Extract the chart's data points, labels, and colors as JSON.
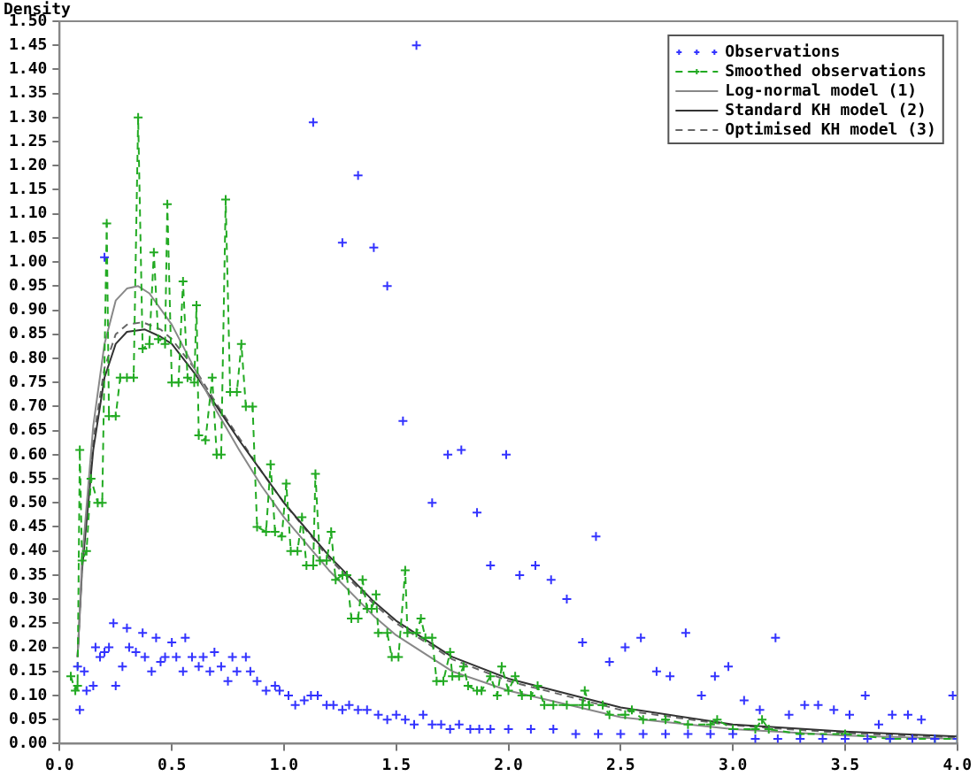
{
  "chart_data": {
    "type": "line",
    "ylabel": "Density",
    "xlim": [
      0,
      4
    ],
    "ylim": [
      0,
      1.5
    ],
    "xticks": [
      {
        "value": 0,
        "label": "0.0"
      },
      {
        "value": 0.5,
        "label": "0.5"
      },
      {
        "value": 1,
        "label": "1.0"
      },
      {
        "value": 1.5,
        "label": "1.5"
      },
      {
        "value": 2,
        "label": "2.0"
      },
      {
        "value": 2.5,
        "label": "2.5"
      },
      {
        "value": 3,
        "label": "3.0"
      },
      {
        "value": 3.5,
        "label": "3.5"
      },
      {
        "value": 4,
        "label": "4.0"
      }
    ],
    "yticks": [
      {
        "value": 0,
        "label": "0.00"
      },
      {
        "value": 0.05,
        "label": "0.05"
      },
      {
        "value": 0.1,
        "label": "0.10"
      },
      {
        "value": 0.15,
        "label": "0.15"
      },
      {
        "value": 0.2,
        "label": "0.20"
      },
      {
        "value": 0.25,
        "label": "0.25"
      },
      {
        "value": 0.3,
        "label": "0.30"
      },
      {
        "value": 0.35,
        "label": "0.35"
      },
      {
        "value": 0.4,
        "label": "0.40"
      },
      {
        "value": 0.45,
        "label": "0.45"
      },
      {
        "value": 0.5,
        "label": "0.50"
      },
      {
        "value": 0.55,
        "label": "0.55"
      },
      {
        "value": 0.6,
        "label": "0.60"
      },
      {
        "value": 0.65,
        "label": "0.65"
      },
      {
        "value": 0.7,
        "label": "0.70"
      },
      {
        "value": 0.75,
        "label": "0.75"
      },
      {
        "value": 0.8,
        "label": "0.80"
      },
      {
        "value": 0.85,
        "label": "0.85"
      },
      {
        "value": 0.9,
        "label": "0.90"
      },
      {
        "value": 0.95,
        "label": "0.95"
      },
      {
        "value": 1,
        "label": "1.00"
      },
      {
        "value": 1.05,
        "label": "1.05"
      },
      {
        "value": 1.1,
        "label": "1.10"
      },
      {
        "value": 1.15,
        "label": "1.15"
      },
      {
        "value": 1.2,
        "label": "1.20"
      },
      {
        "value": 1.25,
        "label": "1.25"
      },
      {
        "value": 1.3,
        "label": "1.30"
      },
      {
        "value": 1.35,
        "label": "1.35"
      },
      {
        "value": 1.4,
        "label": "1.40"
      },
      {
        "value": 1.45,
        "label": "1.45"
      },
      {
        "value": 1.5,
        "label": "1.50"
      }
    ],
    "grid": false,
    "legend": "top right",
    "series": [
      {
        "name": "Observations",
        "type": "scatter",
        "marker": "cross",
        "color": "#3333ff",
        "x": [
          0.2,
          1.13,
          1.33,
          1.26,
          1.4,
          1.46,
          1.59,
          1.53,
          1.73,
          1.79,
          1.66,
          1.86,
          1.92,
          1.99,
          2.05,
          2.12,
          2.19,
          2.26,
          2.33,
          2.39,
          2.45,
          2.52,
          2.59,
          2.66,
          2.72,
          2.79,
          2.86,
          2.92,
          2.98,
          3.05,
          3.12,
          3.19,
          3.25,
          3.32,
          3.38,
          3.45,
          3.52,
          3.59,
          3.65,
          3.71,
          3.78,
          3.84,
          3.98,
          0.08,
          0.09,
          0.11,
          0.12,
          0.15,
          0.16,
          0.18,
          0.2,
          0.22,
          0.24,
          0.25,
          0.28,
          0.3,
          0.31,
          0.34,
          0.37,
          0.38,
          0.41,
          0.43,
          0.45,
          0.47,
          0.5,
          0.52,
          0.55,
          0.56,
          0.59,
          0.62,
          0.64,
          0.67,
          0.69,
          0.72,
          0.75,
          0.77,
          0.79,
          0.83,
          0.85,
          0.88,
          0.92,
          0.96,
          0.98,
          1.02,
          1.05,
          1.09,
          1.12,
          1.15,
          1.19,
          1.22,
          1.26,
          1.29,
          1.33,
          1.37,
          1.42,
          1.46,
          1.5,
          1.54,
          1.58,
          1.62,
          1.66,
          1.7,
          1.74,
          1.78,
          1.83,
          1.87,
          1.92,
          2.0,
          2.1,
          2.2,
          2.3,
          2.4,
          2.5,
          2.6,
          2.7,
          2.8,
          2.9,
          3.0,
          3.1,
          3.2,
          3.3,
          3.4,
          3.5,
          3.6,
          3.7,
          3.8,
          3.9,
          4.0
        ],
        "values": [
          1.01,
          1.29,
          1.18,
          1.04,
          1.03,
          0.95,
          1.45,
          0.67,
          0.6,
          0.61,
          0.5,
          0.48,
          0.37,
          0.6,
          0.35,
          0.37,
          0.34,
          0.3,
          0.21,
          0.43,
          0.17,
          0.2,
          0.22,
          0.15,
          0.14,
          0.23,
          0.1,
          0.14,
          0.16,
          0.09,
          0.07,
          0.22,
          0.06,
          0.08,
          0.08,
          0.07,
          0.06,
          0.1,
          0.04,
          0.06,
          0.06,
          0.05,
          0.1,
          0.16,
          0.07,
          0.15,
          0.11,
          0.12,
          0.2,
          0.18,
          0.19,
          0.2,
          0.25,
          0.12,
          0.16,
          0.24,
          0.2,
          0.19,
          0.23,
          0.18,
          0.15,
          0.22,
          0.17,
          0.18,
          0.21,
          0.18,
          0.15,
          0.22,
          0.18,
          0.16,
          0.18,
          0.15,
          0.19,
          0.16,
          0.13,
          0.18,
          0.15,
          0.18,
          0.15,
          0.13,
          0.11,
          0.12,
          0.11,
          0.1,
          0.08,
          0.09,
          0.1,
          0.1,
          0.08,
          0.08,
          0.07,
          0.08,
          0.07,
          0.07,
          0.06,
          0.05,
          0.06,
          0.05,
          0.04,
          0.06,
          0.04,
          0.04,
          0.03,
          0.04,
          0.03,
          0.03,
          0.03,
          0.03,
          0.03,
          0.03,
          0.02,
          0.02,
          0.02,
          0.02,
          0.02,
          0.02,
          0.02,
          0.02,
          0.01,
          0.01,
          0.01,
          0.01,
          0.01,
          0.01,
          0.01,
          0.01,
          0.01,
          0.01
        ]
      },
      {
        "name": "Smoothed observations",
        "marker": "cross",
        "line_style": "dashed",
        "color": "#22aa22",
        "x": [
          0.05,
          0.07,
          0.08,
          0.09,
          0.1,
          0.12,
          0.14,
          0.17,
          0.19,
          0.21,
          0.22,
          0.25,
          0.27,
          0.3,
          0.33,
          0.35,
          0.37,
          0.4,
          0.42,
          0.44,
          0.47,
          0.48,
          0.5,
          0.53,
          0.55,
          0.57,
          0.6,
          0.61,
          0.62,
          0.65,
          0.68,
          0.7,
          0.72,
          0.74,
          0.76,
          0.79,
          0.81,
          0.83,
          0.86,
          0.88,
          0.92,
          0.94,
          0.96,
          0.99,
          1.01,
          1.03,
          1.06,
          1.08,
          1.1,
          1.13,
          1.14,
          1.16,
          1.19,
          1.21,
          1.23,
          1.26,
          1.28,
          1.3,
          1.33,
          1.35,
          1.37,
          1.39,
          1.41,
          1.42,
          1.46,
          1.48,
          1.51,
          1.54,
          1.55,
          1.59,
          1.61,
          1.63,
          1.66,
          1.68,
          1.71,
          1.74,
          1.75,
          1.78,
          1.8,
          1.82,
          1.86,
          1.88,
          1.92,
          1.95,
          1.97,
          2.0,
          2.03,
          2.06,
          2.1,
          2.13,
          2.16,
          2.2,
          2.26,
          2.33,
          2.34,
          2.36,
          2.42,
          2.45,
          2.52,
          2.55,
          2.6,
          2.7,
          2.8,
          2.9,
          2.93,
          3.0,
          3.1,
          3.13,
          3.16,
          3.3,
          3.5,
          3.7,
          3.9,
          4.0
        ],
        "values": [
          0.14,
          0.11,
          0.12,
          0.61,
          0.38,
          0.4,
          0.55,
          0.5,
          0.5,
          1.08,
          0.68,
          0.68,
          0.76,
          0.76,
          0.76,
          1.3,
          0.82,
          0.83,
          1.02,
          0.84,
          0.83,
          1.12,
          0.75,
          0.75,
          0.96,
          0.76,
          0.75,
          0.91,
          0.64,
          0.63,
          0.76,
          0.6,
          0.6,
          1.13,
          0.73,
          0.73,
          0.83,
          0.7,
          0.7,
          0.45,
          0.44,
          0.58,
          0.44,
          0.43,
          0.54,
          0.4,
          0.4,
          0.47,
          0.37,
          0.37,
          0.56,
          0.38,
          0.38,
          0.44,
          0.34,
          0.35,
          0.35,
          0.26,
          0.26,
          0.34,
          0.28,
          0.28,
          0.31,
          0.23,
          0.23,
          0.18,
          0.18,
          0.36,
          0.23,
          0.23,
          0.26,
          0.22,
          0.22,
          0.13,
          0.13,
          0.19,
          0.14,
          0.14,
          0.16,
          0.12,
          0.11,
          0.11,
          0.14,
          0.1,
          0.16,
          0.11,
          0.14,
          0.1,
          0.1,
          0.12,
          0.08,
          0.08,
          0.08,
          0.08,
          0.11,
          0.08,
          0.08,
          0.06,
          0.06,
          0.07,
          0.05,
          0.05,
          0.04,
          0.04,
          0.05,
          0.03,
          0.03,
          0.05,
          0.03,
          0.02,
          0.02,
          0.01,
          0.01,
          0.01
        ]
      },
      {
        "name": "Log-normal model (1)",
        "marker": "none",
        "line_style": "solid",
        "color": "#888888",
        "x": [
          0.08,
          0.1,
          0.15,
          0.2,
          0.25,
          0.3,
          0.35,
          0.4,
          0.5,
          0.6,
          0.7,
          0.8,
          0.9,
          1.0,
          1.2,
          1.4,
          1.5,
          1.75,
          2.0,
          2.5,
          3.0,
          3.5,
          4.0
        ],
        "values": [
          0.18,
          0.38,
          0.66,
          0.83,
          0.92,
          0.945,
          0.95,
          0.935,
          0.87,
          0.78,
          0.69,
          0.61,
          0.535,
          0.47,
          0.36,
          0.265,
          0.225,
          0.15,
          0.11,
          0.055,
          0.03,
          0.017,
          0.01
        ]
      },
      {
        "name": "Standard KH model (2)",
        "marker": "none",
        "line_style": "solid",
        "color": "#333333",
        "x": [
          0.08,
          0.1,
          0.15,
          0.2,
          0.25,
          0.3,
          0.38,
          0.45,
          0.5,
          0.6,
          0.7,
          0.8,
          0.9,
          1.0,
          1.2,
          1.4,
          1.5,
          1.75,
          2.0,
          2.5,
          3.0,
          3.5,
          4.0
        ],
        "values": [
          0.18,
          0.36,
          0.61,
          0.76,
          0.83,
          0.855,
          0.86,
          0.845,
          0.83,
          0.77,
          0.7,
          0.63,
          0.565,
          0.5,
          0.39,
          0.295,
          0.255,
          0.18,
          0.135,
          0.075,
          0.04,
          0.025,
          0.015
        ]
      },
      {
        "name": "Optimised KH model (3)",
        "marker": "none",
        "line_style": "dashed",
        "color": "#666666",
        "x": [
          0.08,
          0.1,
          0.15,
          0.2,
          0.25,
          0.3,
          0.37,
          0.45,
          0.5,
          0.6,
          0.7,
          0.8,
          0.9,
          1.0,
          1.2,
          1.4,
          1.5,
          1.75,
          2.0,
          2.5,
          3.0,
          3.5,
          4.0
        ],
        "values": [
          0.18,
          0.37,
          0.63,
          0.78,
          0.85,
          0.87,
          0.875,
          0.86,
          0.84,
          0.78,
          0.705,
          0.635,
          0.565,
          0.5,
          0.385,
          0.29,
          0.25,
          0.175,
          0.13,
          0.07,
          0.038,
          0.022,
          0.013
        ]
      }
    ]
  }
}
